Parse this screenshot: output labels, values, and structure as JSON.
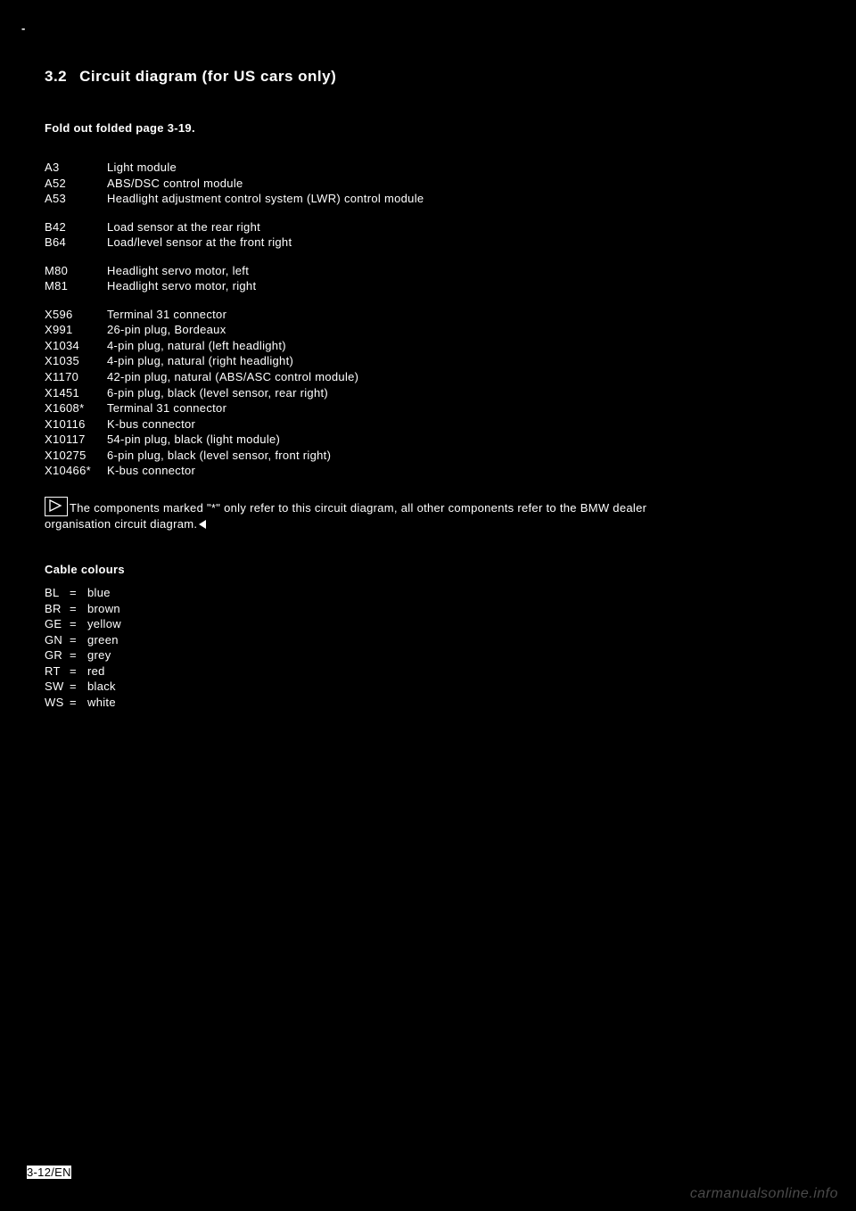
{
  "corner_mark": "-",
  "heading": {
    "number": "3.2",
    "title": "Circuit diagram (for US cars only)"
  },
  "fold_note": "Fold out folded page 3-19.",
  "component_groups": [
    [
      {
        "code": "A3",
        "desc": "Light module"
      },
      {
        "code": "A52",
        "desc": "ABS/DSC control module"
      },
      {
        "code": "A53",
        "desc": "Headlight adjustment control system (LWR) control module"
      }
    ],
    [
      {
        "code": "B42",
        "desc": "Load sensor at the rear right"
      },
      {
        "code": "B64",
        "desc": "Load/level sensor at the front right"
      }
    ],
    [
      {
        "code": "M80",
        "desc": "Headlight servo motor, left"
      },
      {
        "code": "M81",
        "desc": "Headlight servo motor, right"
      }
    ],
    [
      {
        "code": "X596",
        "desc": "Terminal 31 connector"
      },
      {
        "code": "X991",
        "desc": "26-pin plug, Bordeaux"
      },
      {
        "code": "X1034",
        "desc": "4-pin plug, natural (left headlight)"
      },
      {
        "code": "X1035",
        "desc": "4-pin plug, natural (right headlight)"
      },
      {
        "code": "X1170",
        "desc": "42-pin plug, natural (ABS/ASC control module)"
      },
      {
        "code": "X1451",
        "desc": "6-pin plug, black (level sensor, rear right)"
      },
      {
        "code": "X1608*",
        "desc": "Terminal 31 connector"
      },
      {
        "code": "X10116",
        "desc": "K-bus connector"
      },
      {
        "code": "X10117",
        "desc": "54-pin plug, black (light module)"
      },
      {
        "code": "X10275",
        "desc": "6-pin plug, black (level sensor, front right)"
      },
      {
        "code": "X10466*",
        "desc": "K-bus connector"
      }
    ]
  ],
  "note_text_1": "The components marked \"*\" only refer to this circuit diagram, all other components refer to the BMW dealer",
  "note_text_2": "organisation circuit diagram.",
  "colours_heading": "Cable colours",
  "colours": [
    {
      "abbr": "BL",
      "name": "blue"
    },
    {
      "abbr": "BR",
      "name": "brown"
    },
    {
      "abbr": "GE",
      "name": "yellow"
    },
    {
      "abbr": "GN",
      "name": "green"
    },
    {
      "abbr": "GR",
      "name": "grey"
    },
    {
      "abbr": "RT",
      "name": "red"
    },
    {
      "abbr": "SW",
      "name": "black"
    },
    {
      "abbr": "WS",
      "name": "white"
    }
  ],
  "page_number": "3-12/EN",
  "watermark": "carmanualsonline.info",
  "colors": {
    "background": "#000000",
    "text": "#ffffff",
    "page_number_bg": "#ffffff",
    "page_number_text": "#000000",
    "watermark": "#4a4a4a"
  },
  "typography": {
    "heading_fontsize": 17,
    "body_fontsize": 13,
    "font_family": "Arial, Helvetica, sans-serif"
  }
}
